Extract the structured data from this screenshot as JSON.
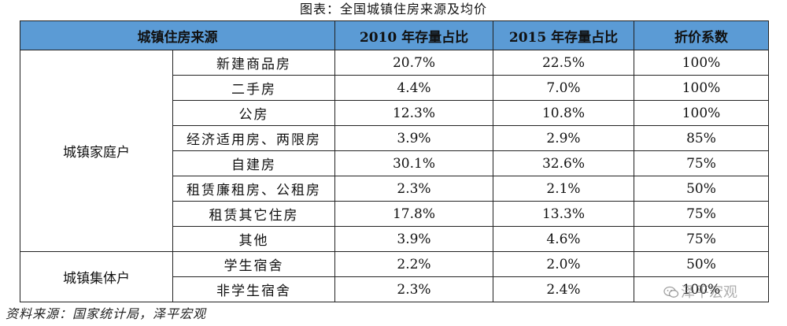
{
  "title": "图表：全国城镇住房来源及均价",
  "headers": [
    "城镇住房来源",
    "2010 年存量占比",
    "2015 年存量占比",
    "折价系数"
  ],
  "groups": [
    {
      "label": "城镇家庭户",
      "rows": [
        {
          "name": "新建商品房",
          "y2010": "20.7%",
          "y2015": "22.5%",
          "coef": "100%"
        },
        {
          "name": "二手房",
          "y2010": "4.4%",
          "y2015": "7.0%",
          "coef": "100%"
        },
        {
          "name": "公房",
          "y2010": "12.3%",
          "y2015": "10.8%",
          "coef": "100%"
        },
        {
          "name": "经济适用房、两限房",
          "y2010": "3.9%",
          "y2015": "2.9%",
          "coef": "85%"
        },
        {
          "name": "自建房",
          "y2010": "30.1%",
          "y2015": "32.6%",
          "coef": "75%"
        },
        {
          "name": "租赁廉租房、公租房",
          "y2010": "2.3%",
          "y2015": "2.1%",
          "coef": "50%"
        },
        {
          "name": "租赁其它住房",
          "y2010": "17.8%",
          "y2015": "13.3%",
          "coef": "75%"
        },
        {
          "name": "其他",
          "y2010": "3.9%",
          "y2015": "4.6%",
          "coef": "75%"
        }
      ]
    },
    {
      "label": "城镇集体户",
      "rows": [
        {
          "name": "学生宿舍",
          "y2010": "2.2%",
          "y2015": "2.0%",
          "coef": "50%"
        },
        {
          "name": "非学生宿舍",
          "y2010": "2.3%",
          "y2015": "2.4%",
          "coef": "100%"
        }
      ]
    }
  ],
  "source": "资料来源：国家统计局，泽平宏观",
  "watermark": "泽平宏观",
  "colors": {
    "header_bg": "#5b9bd5"
  }
}
